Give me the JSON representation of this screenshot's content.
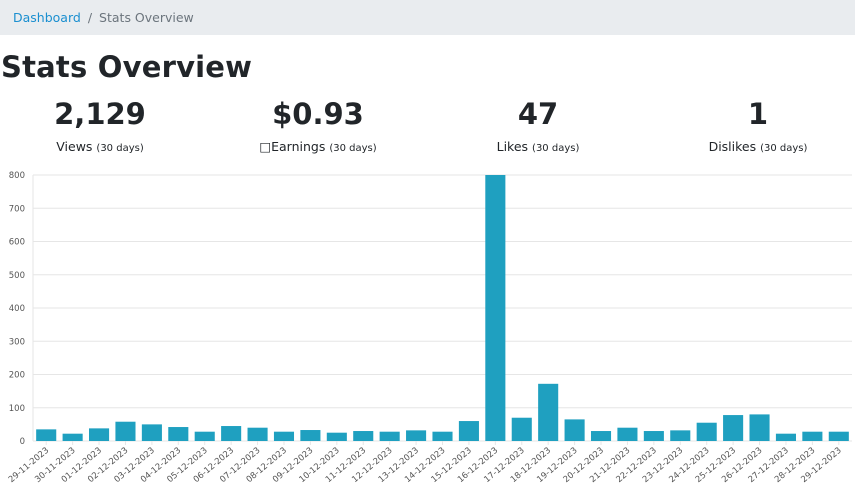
{
  "breadcrumb": {
    "home_label": "Dashboard",
    "separator": "/",
    "current_label": "Stats Overview"
  },
  "page_title": "Stats Overview",
  "stats": {
    "views": {
      "value": "2,129",
      "label": "Views",
      "period": "(30 days)"
    },
    "earnings": {
      "value": "$0.93",
      "label": "□Earnings",
      "period": "(30 days)"
    },
    "likes": {
      "value": "47",
      "label": "Likes",
      "period": "(30 days)"
    },
    "dislikes": {
      "value": "1",
      "label": "Dislikes",
      "period": "(30 days)"
    }
  },
  "colors": {
    "bar": "#1fa0c0",
    "grid": "#e6e6e6",
    "link": "#1a8fd0"
  },
  "chart_data": {
    "type": "bar",
    "title": "",
    "xlabel": "",
    "ylabel": "",
    "ylim": [
      0,
      800
    ],
    "yticks": [
      0,
      100,
      200,
      300,
      400,
      500,
      600,
      700,
      800
    ],
    "grid": true,
    "categories": [
      "29-11-2023",
      "30-11-2023",
      "01-12-2023",
      "02-12-2023",
      "03-12-2023",
      "04-12-2023",
      "05-12-2023",
      "06-12-2023",
      "07-12-2023",
      "08-12-2023",
      "09-12-2023",
      "10-12-2023",
      "11-12-2023",
      "12-12-2023",
      "13-12-2023",
      "14-12-2023",
      "15-12-2023",
      "16-12-2023",
      "17-12-2023",
      "18-12-2023",
      "19-12-2023",
      "20-12-2023",
      "21-12-2023",
      "22-12-2023",
      "23-12-2023",
      "24-12-2023",
      "25-12-2023",
      "26-12-2023",
      "27-12-2023",
      "28-12-2023",
      "29-12-2023"
    ],
    "values": [
      35,
      22,
      38,
      58,
      50,
      42,
      28,
      45,
      40,
      28,
      33,
      25,
      30,
      28,
      32,
      28,
      60,
      800,
      70,
      172,
      65,
      30,
      40,
      30,
      32,
      55,
      78,
      80,
      22,
      28,
      28
    ]
  }
}
